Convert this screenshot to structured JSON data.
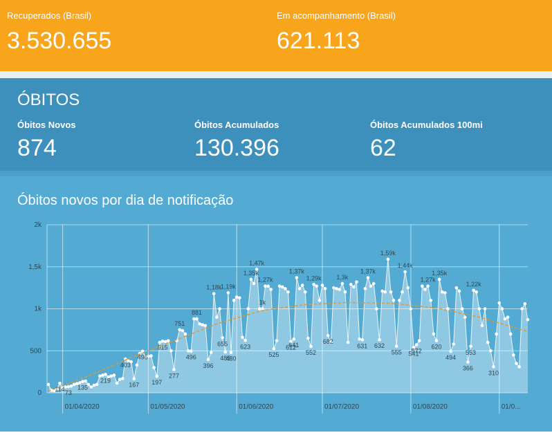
{
  "header": {
    "cards": [
      {
        "label": "Recuperados (Brasil)",
        "value": "3.530.655"
      },
      {
        "label": "Em acompanhamento (Brasil)",
        "value": "621.113"
      }
    ]
  },
  "obitos": {
    "title": "ÓBITOS",
    "cards": [
      {
        "label": "Óbitos Novos",
        "value": "874"
      },
      {
        "label": "Óbitos Acumulados",
        "value": "130.396"
      },
      {
        "label": "Óbitos Acumulados 100mi",
        "value": "62"
      }
    ]
  },
  "chart_data": {
    "type": "line",
    "title": "Óbitos novos por dia de notificação",
    "x": [
      "27/03/2020",
      "28/03/2020",
      "29/03/2020",
      "30/03/2020",
      "31/03/2020",
      "01/04/2020",
      "02/04/2020",
      "03/04/2020",
      "04/04/2020",
      "05/04/2020",
      "06/04/2020",
      "07/04/2020",
      "08/04/2020",
      "09/04/2020",
      "10/04/2020",
      "11/04/2020",
      "12/04/2020",
      "13/04/2020",
      "14/04/2020",
      "15/04/2020",
      "16/04/2020",
      "17/04/2020",
      "18/04/2020",
      "19/04/2020",
      "20/04/2020",
      "21/04/2020",
      "22/04/2020",
      "23/04/2020",
      "24/04/2020",
      "25/04/2020",
      "26/04/2020",
      "27/04/2020",
      "28/04/2020",
      "29/04/2020",
      "30/04/2020",
      "01/05/2020",
      "02/05/2020",
      "03/05/2020",
      "04/05/2020",
      "05/05/2020",
      "06/05/2020",
      "07/05/2020",
      "08/05/2020",
      "09/05/2020",
      "10/05/2020",
      "11/05/2020",
      "12/05/2020",
      "13/05/2020",
      "14/05/2020",
      "15/05/2020",
      "16/05/2020",
      "17/05/2020",
      "18/05/2020",
      "19/05/2020",
      "20/05/2020",
      "21/05/2020",
      "22/05/2020",
      "23/05/2020",
      "24/05/2020",
      "25/05/2020",
      "26/05/2020",
      "27/05/2020",
      "28/05/2020",
      "29/05/2020",
      "30/05/2020",
      "31/05/2020",
      "01/06/2020",
      "02/06/2020",
      "03/06/2020",
      "04/06/2020",
      "05/06/2020",
      "06/06/2020",
      "07/06/2020",
      "08/06/2020",
      "09/06/2020",
      "10/06/2020",
      "11/06/2020",
      "12/06/2020",
      "13/06/2020",
      "14/06/2020",
      "15/06/2020",
      "16/06/2020",
      "17/06/2020",
      "18/06/2020",
      "19/06/2020",
      "20/06/2020",
      "21/06/2020",
      "22/06/2020",
      "23/06/2020",
      "24/06/2020",
      "25/06/2020",
      "26/06/2020",
      "27/06/2020",
      "28/06/2020",
      "29/06/2020",
      "30/06/2020",
      "01/07/2020",
      "02/07/2020",
      "03/07/2020",
      "04/07/2020",
      "05/07/2020",
      "06/07/2020",
      "07/07/2020",
      "08/07/2020",
      "09/07/2020",
      "10/07/2020",
      "11/07/2020",
      "12/07/2020",
      "13/07/2020",
      "14/07/2020",
      "15/07/2020",
      "16/07/2020",
      "17/07/2020",
      "18/07/2020",
      "19/07/2020",
      "20/07/2020",
      "21/07/2020",
      "22/07/2020",
      "23/07/2020",
      "24/07/2020",
      "25/07/2020",
      "26/07/2020",
      "27/07/2020",
      "28/07/2020",
      "29/07/2020",
      "30/07/2020",
      "31/07/2020",
      "01/08/2020",
      "02/08/2020",
      "03/08/2020",
      "04/08/2020",
      "05/08/2020",
      "06/08/2020",
      "07/08/2020",
      "08/08/2020",
      "09/08/2020",
      "10/08/2020",
      "11/08/2020",
      "12/08/2020",
      "13/08/2020",
      "14/08/2020",
      "15/08/2020",
      "16/08/2020",
      "17/08/2020",
      "18/08/2020",
      "19/08/2020",
      "20/08/2020",
      "21/08/2020",
      "22/08/2020",
      "23/08/2020",
      "24/08/2020",
      "25/08/2020",
      "26/08/2020",
      "27/08/2020",
      "28/08/2020",
      "29/08/2020",
      "30/08/2020",
      "31/08/2020",
      "01/09/2020",
      "02/09/2020",
      "03/09/2020",
      "04/09/2020",
      "05/09/2020",
      "06/09/2020",
      "07/09/2020",
      "08/09/2020",
      "09/09/2020",
      "10/09/2020",
      "11/09/2020"
    ],
    "series": [
      {
        "color": "#ffffff",
        "values": [
          100,
          30,
          25,
          45,
          114,
          60,
          70,
          73,
          80,
          100,
          110,
          120,
          135,
          140,
          100,
          70,
          90,
          100,
          200,
          210,
          219,
          190,
          200,
          210,
          115,
          160,
          170,
          403,
          380,
          370,
          167,
          330,
          470,
          496,
          430,
          435,
          440,
          300,
          197,
          600,
          615,
          610,
          620,
          500,
          277,
          620,
          751,
          740,
          700,
          500,
          496,
          880,
          881,
          820,
          810,
          800,
          396,
          480,
          1180,
          900,
          1000,
          655,
          485,
          1190,
          480,
          1100,
          1140,
          1130,
          660,
          623,
          1000,
          1350,
          1300,
          1470,
          1000,
          1000,
          1270,
          1270,
          1230,
          525,
          620,
          1270,
          1260,
          1240,
          1200,
          612,
          641,
          1370,
          1240,
          1280,
          1200,
          650,
          552,
          1290,
          1270,
          1100,
          1280,
          1240,
          682,
          600,
          1250,
          1240,
          1230,
          1300,
          1200,
          600,
          1290,
          1260,
          1320,
          640,
          631,
          1240,
          1370,
          1270,
          1300,
          1000,
          632,
          1210,
          1200,
          1590,
          1200,
          1100,
          555,
          1100,
          1200,
          1440,
          1250,
          1000,
          541,
          572,
          620,
          1270,
          1230,
          1270,
          1100,
          700,
          620,
          1350,
          1200,
          1190,
          1000,
          494,
          580,
          1250,
          1210,
          1000,
          900,
          366,
          553,
          1220,
          1200,
          1000,
          800,
          1000,
          600,
          500,
          310,
          700,
          1070,
          1000,
          880,
          900,
          700,
          450,
          350,
          310,
          1000,
          1060,
          870
        ],
        "value_labels": [
          null,
          null,
          null,
          null,
          "114",
          null,
          null,
          "73",
          null,
          null,
          null,
          null,
          "135",
          null,
          null,
          null,
          null,
          null,
          null,
          null,
          "219",
          null,
          null,
          null,
          null,
          null,
          null,
          "403",
          null,
          null,
          "167",
          null,
          null,
          "496",
          null,
          null,
          null,
          null,
          "197",
          null,
          "615",
          null,
          null,
          null,
          "277",
          null,
          "751",
          null,
          null,
          null,
          "496",
          null,
          "881",
          null,
          null,
          null,
          "396",
          null,
          "1,18k",
          null,
          null,
          "655",
          "485",
          "1,19k",
          "480",
          null,
          null,
          null,
          null,
          "623",
          null,
          "1,35k",
          null,
          "1,47k",
          null,
          "1k",
          "1,27k",
          null,
          null,
          "525",
          null,
          null,
          null,
          null,
          null,
          "612",
          "641",
          "1,37k",
          null,
          null,
          null,
          null,
          "552",
          "1,29k",
          null,
          null,
          null,
          null,
          "682",
          null,
          null,
          null,
          null,
          "1,3k",
          null,
          null,
          null,
          null,
          null,
          null,
          "631",
          null,
          "1,37k",
          null,
          null,
          null,
          "632",
          null,
          null,
          "1,59k",
          null,
          null,
          "555",
          null,
          null,
          "1,44k",
          null,
          null,
          "541",
          "572",
          null,
          null,
          null,
          "1,27k",
          null,
          null,
          "620",
          "1,35k",
          null,
          null,
          null,
          "494",
          null,
          null,
          null,
          null,
          null,
          "366",
          "553",
          "1,22k",
          null,
          null,
          null,
          null,
          null,
          null,
          "310",
          null,
          null,
          null,
          null,
          null,
          null,
          null,
          null,
          null,
          null,
          null,
          null
        ]
      }
    ],
    "trend": {
      "color": "#e8952a",
      "x": [
        "27/03/2020",
        "10/04/2020",
        "25/04/2020",
        "10/05/2020",
        "25/05/2020",
        "10/06/2020",
        "25/06/2020",
        "10/07/2020",
        "25/07/2020",
        "10/08/2020",
        "25/08/2020",
        "11/09/2020"
      ],
      "values": [
        20,
        200,
        420,
        620,
        820,
        980,
        1050,
        1075,
        1065,
        1010,
        900,
        730
      ]
    },
    "xlim": [
      "27/03/2020",
      "11/09/2020"
    ],
    "xticks": [
      "01/04/2020",
      "01/05/2020",
      "01/06/2020",
      "01/07/2020",
      "01/08/2020",
      {
        "value": "01/09/2020",
        "label": "01/0..."
      }
    ],
    "ylim": [
      0,
      2000
    ],
    "yticks": [
      0,
      500,
      {
        "value": 1000,
        "label": "1k"
      },
      {
        "value": 1500,
        "label": "1,5k"
      },
      {
        "value": 2000,
        "label": "2k"
      }
    ],
    "grid": true
  }
}
